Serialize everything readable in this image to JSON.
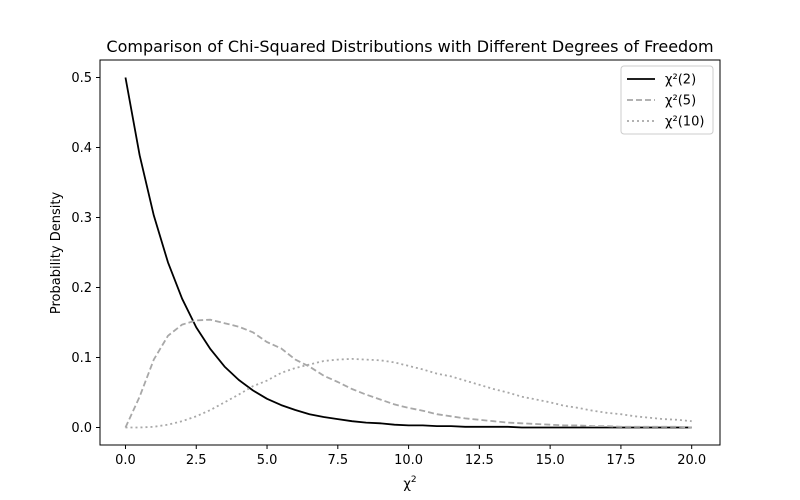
{
  "chart_data": {
    "type": "line",
    "title": "Comparison of Chi-Squared Distributions with Different Degrees of Freedom",
    "xlabel": "χ",
    "xlabel_superscript": "2",
    "ylabel": "Probability Density",
    "xlim": [
      -0.9,
      21.0
    ],
    "ylim": [
      -0.025,
      0.525
    ],
    "xticks": [
      0.0,
      2.5,
      5.0,
      7.5,
      10.0,
      12.5,
      15.0,
      17.5,
      20.0
    ],
    "xtick_labels": [
      "0.0",
      "2.5",
      "5.0",
      "7.5",
      "10.0",
      "12.5",
      "15.0",
      "17.5",
      "20.0"
    ],
    "yticks": [
      0.0,
      0.1,
      0.2,
      0.3,
      0.4,
      0.5
    ],
    "ytick_labels": [
      "0.0",
      "0.1",
      "0.2",
      "0.3",
      "0.4",
      "0.5"
    ],
    "grid": false,
    "legend_position": "top-right",
    "x": [
      0.0,
      0.5,
      1.0,
      1.5,
      2.0,
      2.5,
      3.0,
      3.5,
      4.0,
      4.5,
      5.0,
      5.5,
      6.0,
      6.5,
      7.0,
      7.5,
      8.0,
      8.5,
      9.0,
      9.5,
      10.0,
      10.5,
      11.0,
      11.5,
      12.0,
      12.5,
      13.0,
      13.5,
      14.0,
      14.5,
      15.0,
      15.5,
      16.0,
      16.5,
      17.0,
      17.5,
      18.0,
      18.5,
      19.0,
      19.5,
      20.0
    ],
    "series": [
      {
        "name": "χ²(2)",
        "color": "#000000",
        "style": "solid",
        "values": [
          0.5,
          0.389,
          0.303,
          0.236,
          0.184,
          0.143,
          0.112,
          0.087,
          0.068,
          0.053,
          0.041,
          0.032,
          0.025,
          0.019,
          0.015,
          0.012,
          0.009,
          0.007,
          0.006,
          0.004,
          0.003,
          0.003,
          0.002,
          0.002,
          0.001,
          0.001,
          0.001,
          0.001,
          0.0,
          0.0,
          0.0,
          0.0,
          0.0,
          0.0,
          0.0,
          0.0,
          0.0,
          0.0,
          0.0,
          0.0,
          0.0
        ]
      },
      {
        "name": "χ²(5)",
        "color": "#a8a8a8",
        "style": "dashed",
        "values": [
          0.0,
          0.044,
          0.097,
          0.131,
          0.147,
          0.153,
          0.154,
          0.149,
          0.144,
          0.136,
          0.122,
          0.113,
          0.097,
          0.087,
          0.074,
          0.065,
          0.055,
          0.047,
          0.04,
          0.033,
          0.028,
          0.024,
          0.019,
          0.016,
          0.013,
          0.011,
          0.009,
          0.007,
          0.006,
          0.005,
          0.004,
          0.003,
          0.003,
          0.002,
          0.002,
          0.001,
          0.001,
          0.001,
          0.001,
          0.001,
          0.0
        ]
      },
      {
        "name": "χ²(10)",
        "color": "#a8a8a8",
        "style": "dotted",
        "values": [
          0.0,
          0.0,
          0.001,
          0.004,
          0.009,
          0.016,
          0.025,
          0.036,
          0.047,
          0.059,
          0.067,
          0.078,
          0.085,
          0.09,
          0.095,
          0.097,
          0.098,
          0.097,
          0.096,
          0.093,
          0.088,
          0.083,
          0.077,
          0.073,
          0.067,
          0.061,
          0.055,
          0.05,
          0.044,
          0.04,
          0.036,
          0.031,
          0.028,
          0.024,
          0.021,
          0.019,
          0.016,
          0.014,
          0.012,
          0.011,
          0.009
        ]
      }
    ]
  }
}
